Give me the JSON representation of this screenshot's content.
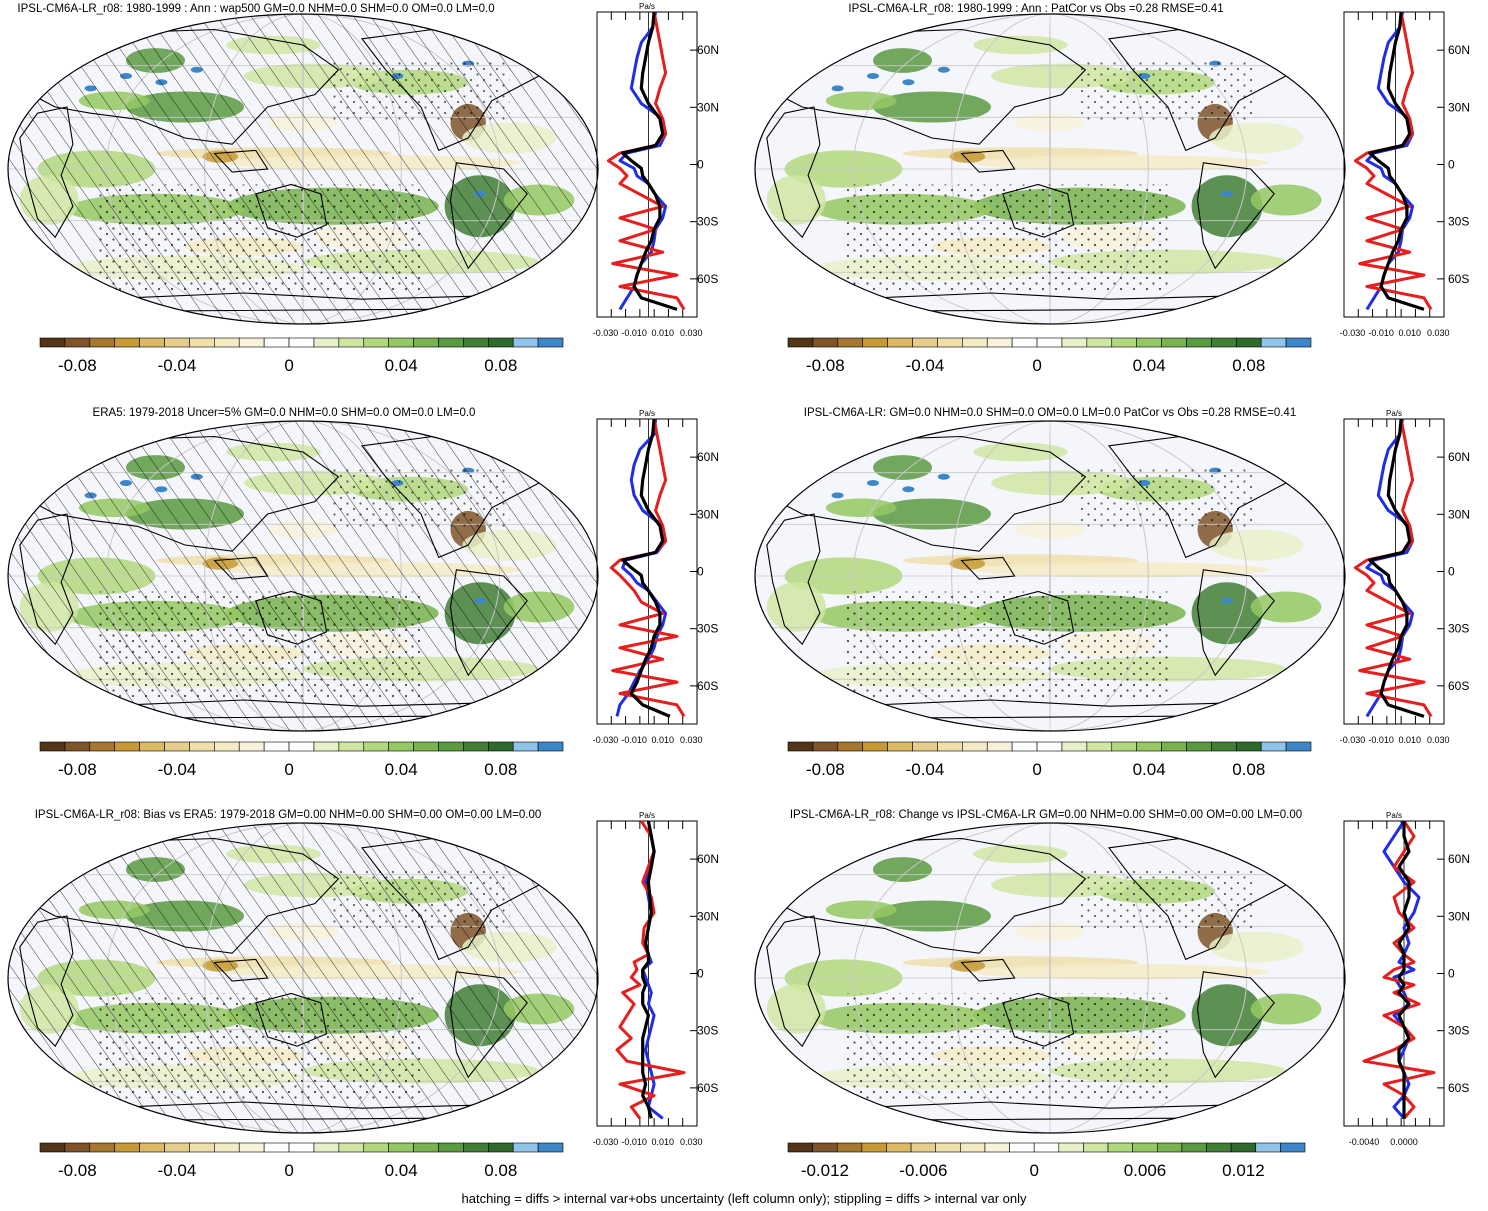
{
  "figure": {
    "footnote": "hatching = diffs > internal var+obs uncertainty (left column only); stippling = diffs > internal var only"
  },
  "colors": {
    "ocean_bg": "#f4f6fb",
    "colorbar": [
      "#553518",
      "#7e5428",
      "#a6772f",
      "#c79a35",
      "#dcb965",
      "#e6cd8c",
      "#efdfab",
      "#f4ebc4",
      "#f8f2da",
      "#ffffff",
      "#ffffff",
      "#e7f1c9",
      "#cfe6a2",
      "#b2d87d",
      "#95c862",
      "#78b34f",
      "#5a9a41",
      "#427f36",
      "#2d6a2c",
      "#8fc4e8",
      "#3d87c9"
    ],
    "obs_line": "#1f2ee6",
    "model_line": "#e61e1e",
    "mean_line": "#000000"
  },
  "chart_data": [
    {
      "type": "heatmap",
      "title": "IPSL-CM6A-LR_r08: 1980-1999 : Ann : wap500 GM=0.0 NHM=0.0 SHM=0.0 OM=0.0 LM=0.0",
      "colorbar_ticks": [
        "-0.08",
        "-0.04",
        "0",
        "0.04",
        "0.08"
      ],
      "profile": {
        "unit": "Pa/s",
        "x_ticks": [
          "-0.030",
          "-0.010",
          "0.010",
          "0.030"
        ],
        "lat_ticks": [
          "60N",
          "30N",
          "0",
          "30S",
          "60S"
        ],
        "lat": [
          80,
          72,
          64,
          56,
          48,
          40,
          32,
          24,
          16,
          10,
          6,
          2,
          -2,
          -6,
          -10,
          -16,
          -22,
          -28,
          -34,
          -40,
          -46,
          -52,
          -58,
          -64,
          -70,
          -76
        ],
        "series": [
          {
            "values": [
              0.005,
              0.003,
              -0.005,
              -0.008,
              -0.01,
              -0.012,
              -0.005,
              0.01,
              0.012,
              0.008,
              -0.015,
              -0.02,
              -0.01,
              -0.008,
              0.0,
              0.005,
              0.012,
              0.01,
              0.005,
              0.004,
              0.002,
              -0.005,
              -0.008,
              -0.01,
              -0.015,
              -0.02
            ]
          },
          {
            "values": [
              0.004,
              0.006,
              0.008,
              0.01,
              0.012,
              0.008,
              0.005,
              0.01,
              0.012,
              0.005,
              -0.02,
              -0.028,
              -0.02,
              -0.015,
              -0.02,
              -0.005,
              0.01,
              -0.02,
              0.005,
              -0.02,
              0.01,
              -0.025,
              0.02,
              -0.02,
              0.02,
              0.025
            ]
          },
          {
            "values": [
              0.004,
              0.003,
              0.0,
              -0.002,
              -0.004,
              -0.005,
              0.0,
              0.008,
              0.01,
              0.005,
              -0.018,
              -0.012,
              -0.005,
              -0.004,
              0.0,
              0.005,
              0.008,
              0.008,
              0.004,
              0.002,
              -0.002,
              -0.005,
              -0.008,
              -0.01,
              -0.005,
              0.02
            ]
          }
        ]
      }
    },
    {
      "type": "heatmap",
      "title": "IPSL-CM6A-LR_r08: 1980-1999 : Ann : PatCor vs Obs =0.28 RMSE=0.41",
      "colorbar_ticks": [
        "-0.08",
        "-0.04",
        "0",
        "0.04",
        "0.08"
      ],
      "profile": {
        "x_ticks": [
          "-0.030",
          "-0.010",
          "0.010",
          "0.030"
        ],
        "lat_ticks": [
          "60N",
          "30N",
          "0",
          "30S",
          "60S"
        ],
        "lat": [
          80,
          72,
          64,
          56,
          48,
          40,
          32,
          24,
          16,
          10,
          6,
          2,
          -2,
          -6,
          -10,
          -16,
          -22,
          -28,
          -34,
          -40,
          -46,
          -52,
          -58,
          -64,
          -70,
          -76
        ],
        "series": [
          {
            "values": [
              0.005,
              0.003,
              -0.005,
              -0.008,
              -0.01,
              -0.012,
              -0.005,
              0.01,
              0.012,
              0.008,
              -0.015,
              -0.02,
              -0.01,
              -0.008,
              0.0,
              0.005,
              0.012,
              0.01,
              0.005,
              0.004,
              0.002,
              -0.005,
              -0.008,
              -0.01,
              -0.015,
              -0.02
            ]
          },
          {
            "values": [
              0.004,
              0.006,
              0.008,
              0.01,
              0.012,
              0.008,
              0.005,
              0.01,
              0.012,
              0.005,
              -0.02,
              -0.028,
              -0.02,
              -0.015,
              -0.02,
              -0.005,
              0.01,
              -0.02,
              0.005,
              -0.02,
              0.01,
              -0.025,
              0.02,
              -0.02,
              0.02,
              0.025
            ]
          },
          {
            "values": [
              0.004,
              0.003,
              0.0,
              -0.002,
              -0.004,
              -0.005,
              0.0,
              0.008,
              0.01,
              0.005,
              -0.018,
              -0.012,
              -0.005,
              -0.004,
              0.0,
              0.005,
              0.008,
              0.008,
              0.004,
              0.002,
              -0.002,
              -0.005,
              -0.008,
              -0.01,
              -0.005,
              0.02
            ]
          }
        ]
      }
    },
    {
      "type": "heatmap",
      "title": "ERA5: 1979-2018 Uncer=5% GM=0.0 NHM=0.0 SHM=0.0 OM=0.0 LM=0.0",
      "colorbar_ticks": [
        "-0.08",
        "-0.04",
        "0",
        "0.04",
        "0.08"
      ],
      "profile": {
        "unit": "Pa/s",
        "x_ticks": [
          "-0.030",
          "-0.010",
          "0.010",
          "0.030"
        ],
        "lat_ticks": [
          "60N",
          "30N",
          "0",
          "30S",
          "60S"
        ],
        "lat": [
          80,
          72,
          64,
          56,
          48,
          40,
          32,
          24,
          16,
          10,
          6,
          2,
          -2,
          -6,
          -10,
          -16,
          -22,
          -28,
          -34,
          -40,
          -46,
          -52,
          -58,
          -64,
          -70,
          -76
        ],
        "series": [
          {
            "values": [
              0.005,
              0.004,
              -0.006,
              -0.01,
              -0.012,
              -0.01,
              -0.004,
              0.01,
              0.012,
              0.006,
              -0.016,
              -0.018,
              -0.012,
              -0.008,
              0.0,
              0.006,
              0.012,
              0.01,
              0.006,
              0.004,
              0.0,
              -0.006,
              -0.01,
              -0.014,
              -0.02,
              -0.022
            ]
          },
          {
            "values": [
              0.004,
              0.006,
              0.008,
              0.01,
              0.012,
              0.008,
              0.005,
              0.01,
              0.012,
              0.005,
              -0.02,
              -0.026,
              -0.02,
              -0.015,
              -0.01,
              -0.005,
              0.01,
              -0.02,
              0.02,
              -0.02,
              0.01,
              -0.025,
              0.02,
              -0.02,
              0.02,
              0.025
            ]
          },
          {
            "values": [
              0.004,
              0.003,
              0.0,
              -0.002,
              -0.004,
              -0.005,
              0.0,
              0.008,
              0.01,
              0.005,
              -0.018,
              -0.012,
              -0.005,
              -0.004,
              0.0,
              0.005,
              0.008,
              0.008,
              0.004,
              0.002,
              -0.002,
              -0.005,
              -0.008,
              -0.012,
              -0.004,
              0.015
            ]
          }
        ]
      }
    },
    {
      "type": "heatmap",
      "title": "IPSL-CM6A-LR: GM=0.0 NHM=0.0 SHM=0.0 OM=0.0 LM=0.0 PatCor vs Obs =0.28 RMSE=0.41",
      "colorbar_ticks": [
        "-0.08",
        "-0.04",
        "0",
        "0.04",
        "0.08"
      ],
      "profile": {
        "unit": "Pa/s",
        "x_ticks": [
          "-0.030",
          "-0.010",
          "0.010",
          "0.030"
        ],
        "lat_ticks": [
          "60N",
          "30N",
          "0",
          "30S",
          "60S"
        ],
        "lat": [
          80,
          72,
          64,
          56,
          48,
          40,
          32,
          24,
          16,
          10,
          6,
          2,
          -2,
          -6,
          -10,
          -16,
          -22,
          -28,
          -34,
          -40,
          -46,
          -52,
          -58,
          -64,
          -70,
          -76
        ],
        "series": [
          {
            "values": [
              0.005,
              0.003,
              -0.005,
              -0.008,
              -0.01,
              -0.012,
              -0.005,
              0.01,
              0.012,
              0.008,
              -0.015,
              -0.02,
              -0.01,
              -0.008,
              0.0,
              0.005,
              0.012,
              0.01,
              0.005,
              0.004,
              0.002,
              -0.005,
              -0.008,
              -0.01,
              -0.015,
              -0.02
            ]
          },
          {
            "values": [
              0.004,
              0.006,
              0.008,
              0.01,
              0.012,
              0.008,
              0.005,
              0.01,
              0.012,
              0.005,
              -0.02,
              -0.028,
              -0.02,
              -0.015,
              -0.02,
              -0.005,
              0.01,
              -0.02,
              0.005,
              -0.02,
              0.01,
              -0.025,
              0.02,
              -0.02,
              0.02,
              0.025
            ]
          },
          {
            "values": [
              0.004,
              0.003,
              0.0,
              -0.002,
              -0.004,
              -0.005,
              0.0,
              0.008,
              0.01,
              0.005,
              -0.018,
              -0.012,
              -0.005,
              -0.004,
              0.0,
              0.005,
              0.008,
              0.008,
              0.004,
              0.002,
              -0.002,
              -0.005,
              -0.008,
              -0.01,
              -0.005,
              0.02
            ]
          }
        ]
      }
    },
    {
      "type": "heatmap",
      "title": "IPSL-CM6A-LR_r08: Bias vs ERA5: 1979-2018 GM=0.00 NHM=0.00 SHM=0.00 OM=0.00 LM=0.00",
      "colorbar_ticks": [
        "-0.08",
        "-0.04",
        "0",
        "0.04",
        "0.08"
      ],
      "profile": {
        "unit": "Pa/s",
        "x_ticks": [
          "-0.030",
          "-0.010",
          "0.010",
          "0.030"
        ],
        "lat_ticks": [
          "60N",
          "30N",
          "0",
          "30S",
          "60S"
        ],
        "lat": [
          80,
          72,
          64,
          56,
          48,
          40,
          32,
          24,
          16,
          10,
          6,
          2,
          -2,
          -6,
          -10,
          -16,
          -22,
          -28,
          -34,
          -40,
          -46,
          -52,
          -58,
          -64,
          -70,
          -76
        ],
        "series": [
          {
            "values": [
              0.0,
              0.002,
              0.004,
              0.0,
              -0.002,
              0.0,
              0.002,
              0.0,
              -0.002,
              0.0,
              0.002,
              -0.004,
              -0.002,
              0.0,
              0.002,
              0.0,
              0.004,
              0.002,
              0.0,
              -0.002,
              0.0,
              0.002,
              0.004,
              0.002,
              0.0,
              0.01
            ]
          },
          {
            "values": [
              -0.005,
              0.002,
              0.004,
              0.0,
              -0.004,
              0.002,
              0.004,
              -0.003,
              -0.004,
              0.0,
              -0.01,
              -0.008,
              -0.012,
              -0.006,
              -0.018,
              -0.01,
              -0.015,
              -0.02,
              -0.012,
              -0.022,
              -0.015,
              0.025,
              -0.02,
              0.004,
              -0.012,
              -0.006
            ]
          },
          {
            "values": [
              0.0,
              0.002,
              0.004,
              0.002,
              0.0,
              0.001,
              0.002,
              0.0,
              -0.002,
              0.0,
              0.0,
              -0.004,
              -0.004,
              -0.002,
              -0.004,
              -0.004,
              0.0,
              -0.002,
              -0.004,
              -0.004,
              -0.004,
              -0.004,
              -0.002,
              -0.004,
              0.0,
              0.002
            ]
          }
        ]
      }
    },
    {
      "type": "heatmap",
      "title": "IPSL-CM6A-LR_r08: Change vs IPSL-CM6A-LR GM=0.00 NHM=0.00 SHM=0.00 OM=0.00 LM=0.00",
      "colorbar_ticks": [
        "-0.012",
        "-0.006",
        "0",
        "0.006",
        "0.012"
      ],
      "profile": {
        "unit": "Pa/s",
        "x_ticks": [
          "-0.0040",
          "0.0000"
        ],
        "lat_ticks": [
          "60N",
          "30N",
          "0",
          "30S",
          "60S"
        ],
        "lat": [
          80,
          72,
          64,
          56,
          48,
          40,
          32,
          24,
          16,
          10,
          6,
          2,
          -2,
          -6,
          -10,
          -16,
          -22,
          -28,
          -34,
          -40,
          -46,
          -52,
          -58,
          -64,
          -70,
          -76
        ],
        "series": [
          {
            "values": [
              0.0,
              -0.001,
              -0.002,
              -0.001,
              0.0,
              0.0015,
              0.001,
              0.0,
              0.0005,
              0.0,
              -0.0005,
              0.001,
              -0.001,
              -0.0005,
              0.0,
              0.0005,
              -0.001,
              0.0,
              0.0005,
              0.0,
              -0.0005,
              0.0,
              0.0005,
              0.0,
              -0.001,
              0.0
            ]
          },
          {
            "values": [
              0.0,
              0.001,
              0.0,
              -0.001,
              0.001,
              -0.001,
              -0.0005,
              0.001,
              -0.001,
              0.0,
              0.001,
              -0.001,
              -0.002,
              0.001,
              -0.001,
              0.0015,
              -0.002,
              0.0,
              0.001,
              -0.001,
              -0.004,
              0.003,
              -0.002,
              0.0,
              0.001,
              0.0
            ]
          },
          {
            "values": [
              0.0,
              0.0,
              0.0005,
              -0.0005,
              0.0005,
              0.0005,
              0.0,
              0.0005,
              -0.0005,
              0.0,
              0.0,
              0.0,
              -0.0005,
              0.0,
              -0.0005,
              0.0005,
              -0.0005,
              0.0,
              0.0005,
              -0.0005,
              -0.0005,
              0.0,
              0.0,
              0.0,
              0.0,
              0.0
            ]
          }
        ]
      }
    }
  ]
}
